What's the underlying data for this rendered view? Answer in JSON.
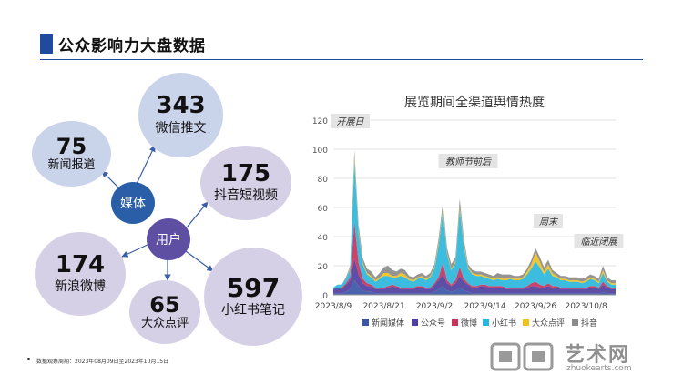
{
  "header": {
    "title": "公众影响力大盘数据"
  },
  "bubbles": {
    "wechat": {
      "value": "343",
      "label": "微信推文"
    },
    "news": {
      "value": "75",
      "label": "新闻报道"
    },
    "douyin": {
      "value": "175",
      "label": "抖音短视频"
    },
    "weibo": {
      "value": "174",
      "label": "新浪微博"
    },
    "dianping": {
      "value": "65",
      "label": "大众点评"
    },
    "xhs": {
      "value": "597",
      "label": "小红书笔记"
    }
  },
  "hubs": {
    "media": "媒体",
    "user": "用户"
  },
  "colors": {
    "title_bar": "#1f4aa0",
    "hub_media": "#2a5fa8",
    "hub_user": "#5e4fa3",
    "bubble_blue": "#c9d3ea",
    "bubble_purple": "#d6d0e6"
  },
  "footnote": "数据观察周期：2023年08月09日至2023年10月15日",
  "watermark": {
    "brand": "艺术网",
    "url": "zhuokearts.com"
  },
  "chart_data": {
    "type": "area",
    "stacked": true,
    "title": "展览期间全渠道舆情热度",
    "ylim": [
      0,
      120
    ],
    "yticks": [
      0,
      20,
      40,
      60,
      80,
      100,
      120
    ],
    "xtick_labels": [
      "2023/8/9",
      "2023/8/21",
      "2023/9/2",
      "2023/9/14",
      "2023/9/26",
      "2023/10/8"
    ],
    "xtick_indices": [
      0,
      12,
      24,
      36,
      48,
      60
    ],
    "n_days": 68,
    "annotations": [
      {
        "text": "开展日",
        "day": 4
      },
      {
        "text": "教师节前后",
        "day": 32
      },
      {
        "text": "周末",
        "day": 51
      },
      {
        "text": "临近闭展",
        "day": 63
      }
    ],
    "series": [
      {
        "name": "新闻媒体",
        "color": "#3a56a8",
        "values": [
          1,
          1,
          1,
          2,
          4,
          10,
          6,
          3,
          2,
          2,
          1,
          1,
          1,
          1,
          1,
          1,
          1,
          1,
          1,
          1,
          1,
          1,
          1,
          1,
          2,
          4,
          6,
          3,
          2,
          3,
          5,
          3,
          2,
          1,
          1,
          1,
          1,
          1,
          1,
          1,
          1,
          1,
          1,
          1,
          1,
          1,
          1,
          1,
          1,
          1,
          1,
          1,
          1,
          1,
          1,
          1,
          1,
          1,
          1,
          1,
          1,
          1,
          1,
          1,
          2,
          1,
          1,
          1
        ]
      },
      {
        "name": "公众号",
        "color": "#4f3f9e",
        "values": [
          3,
          4,
          3,
          5,
          6,
          15,
          8,
          5,
          4,
          4,
          3,
          3,
          3,
          4,
          5,
          4,
          3,
          3,
          3,
          3,
          4,
          4,
          3,
          3,
          5,
          6,
          8,
          5,
          4,
          5,
          8,
          6,
          5,
          4,
          4,
          5,
          5,
          4,
          4,
          4,
          4,
          3,
          3,
          3,
          3,
          3,
          4,
          5,
          5,
          4,
          4,
          5,
          4,
          4,
          3,
          3,
          3,
          3,
          3,
          3,
          3,
          4,
          4,
          3,
          5,
          4,
          3,
          3
        ]
      },
      {
        "name": "微博",
        "color": "#c8325b",
        "values": [
          0,
          0,
          1,
          1,
          2,
          25,
          8,
          3,
          2,
          1,
          1,
          1,
          1,
          1,
          1,
          1,
          1,
          1,
          1,
          1,
          1,
          1,
          1,
          1,
          1,
          2,
          8,
          2,
          1,
          2,
          6,
          2,
          1,
          1,
          1,
          1,
          1,
          1,
          1,
          1,
          1,
          1,
          1,
          1,
          1,
          1,
          1,
          2,
          3,
          2,
          1,
          2,
          1,
          1,
          1,
          1,
          1,
          1,
          1,
          1,
          1,
          1,
          1,
          1,
          2,
          1,
          1,
          1
        ]
      },
      {
        "name": "小红书",
        "color": "#2bb7dc",
        "values": [
          1,
          2,
          2,
          3,
          6,
          42,
          20,
          10,
          6,
          5,
          4,
          6,
          8,
          7,
          5,
          6,
          8,
          7,
          5,
          4,
          5,
          6,
          5,
          7,
          10,
          22,
          35,
          18,
          10,
          12,
          40,
          22,
          10,
          8,
          7,
          6,
          5,
          5,
          4,
          5,
          4,
          5,
          6,
          5,
          5,
          6,
          8,
          10,
          14,
          12,
          8,
          10,
          7,
          6,
          5,
          5,
          4,
          4,
          4,
          3,
          4,
          5,
          4,
          3,
          6,
          3,
          2,
          2
        ]
      },
      {
        "name": "大众点评",
        "color": "#f1c21b",
        "values": [
          0,
          0,
          0,
          0,
          1,
          3,
          2,
          1,
          1,
          1,
          1,
          1,
          2,
          2,
          1,
          1,
          2,
          2,
          1,
          1,
          1,
          1,
          1,
          1,
          1,
          2,
          2,
          1,
          1,
          1,
          2,
          2,
          1,
          1,
          1,
          1,
          1,
          1,
          1,
          1,
          1,
          1,
          1,
          1,
          1,
          1,
          2,
          3,
          6,
          4,
          2,
          3,
          2,
          1,
          1,
          1,
          1,
          1,
          1,
          1,
          1,
          1,
          1,
          1,
          2,
          1,
          1,
          1
        ]
      },
      {
        "name": "抖音",
        "color": "#8b8b8b",
        "values": [
          0,
          0,
          0,
          1,
          1,
          4,
          4,
          3,
          3,
          3,
          2,
          3,
          4,
          5,
          4,
          3,
          3,
          3,
          2,
          2,
          2,
          2,
          2,
          2,
          2,
          3,
          4,
          3,
          3,
          3,
          5,
          3,
          2,
          2,
          2,
          2,
          2,
          2,
          2,
          3,
          3,
          3,
          2,
          2,
          2,
          2,
          2,
          3,
          3,
          3,
          3,
          3,
          2,
          2,
          2,
          2,
          2,
          2,
          2,
          2,
          2,
          2,
          2,
          2,
          3,
          2,
          2,
          2
        ]
      }
    ]
  }
}
